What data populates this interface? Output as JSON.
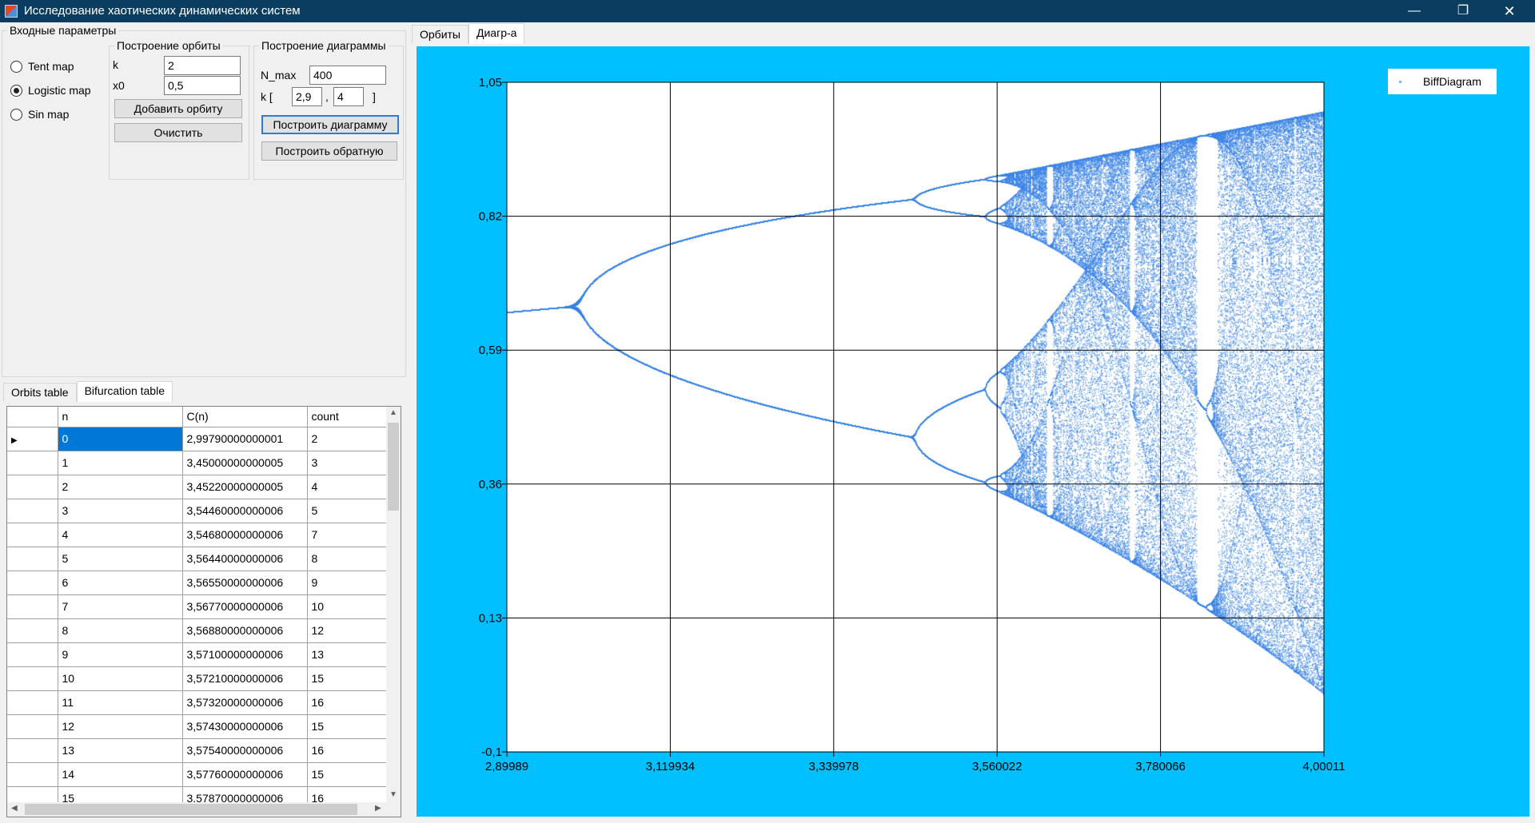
{
  "window": {
    "title": "Исследование хаотических динамических систем",
    "minimize": "—",
    "maximize": "❐",
    "close": "✕"
  },
  "params": {
    "group_label": "Входные параметры",
    "maps": [
      {
        "label": "Tent map",
        "checked": false
      },
      {
        "label": "Logistic map",
        "checked": true
      },
      {
        "label": "Sin map",
        "checked": false
      }
    ],
    "orbit": {
      "title": "Построение орбиты",
      "k_label": "k",
      "k_value": "2",
      "x0_label": "x0",
      "x0_value": "0,5",
      "add_button": "Добавить орбиту",
      "clear_button": "Очистить"
    },
    "diagram": {
      "title": "Построение диаграммы",
      "nmax_label": "N_max",
      "nmax_value": "400",
      "k_open": "k [",
      "k_from": "2,9",
      "k_sep": ",",
      "k_to": "4",
      "k_close": "]",
      "build_button": "Построить диаграмму",
      "build_reverse_button": "Построить обратную"
    }
  },
  "bottom_tabs": [
    "Orbits table",
    "Bifurcation table"
  ],
  "table": {
    "columns": [
      "n",
      "C(n)",
      "count"
    ],
    "rows": [
      [
        "0",
        "2,99790000000001",
        "2"
      ],
      [
        "1",
        "3,45000000000005",
        "3"
      ],
      [
        "2",
        "3,45220000000005",
        "4"
      ],
      [
        "3",
        "3,54460000000006",
        "5"
      ],
      [
        "4",
        "3,54680000000006",
        "7"
      ],
      [
        "5",
        "3,56440000000006",
        "8"
      ],
      [
        "6",
        "3,56550000000006",
        "9"
      ],
      [
        "7",
        "3,56770000000006",
        "10"
      ],
      [
        "8",
        "3,56880000000006",
        "12"
      ],
      [
        "9",
        "3,57100000000006",
        "13"
      ],
      [
        "10",
        "3,57210000000006",
        "15"
      ],
      [
        "11",
        "3,57320000000006",
        "16"
      ],
      [
        "12",
        "3,57430000000006",
        "15"
      ],
      [
        "13",
        "3,57540000000006",
        "16"
      ],
      [
        "14",
        "3,57760000000006",
        "15"
      ],
      [
        "15",
        "3,57870000000006",
        "16"
      ]
    ]
  },
  "right_tabs": [
    "Орбиты",
    "Диагр-а"
  ],
  "colors": {
    "chart_bg": "#00bfff",
    "series": "#3d85e6",
    "titlebar": "#0a3d5f",
    "selection": "#0078d7"
  },
  "chart_data": {
    "type": "scatter",
    "series": [
      {
        "name": "BiffDiagram",
        "model": "logistic map x(n+1) = k*x(n)*(1-x(n)), x0 = 0,5, N_max = 400"
      }
    ],
    "k_range": [
      2.9,
      4.0
    ],
    "xlim": [
      2.89989,
      4.00011
    ],
    "ylim": [
      -0.1,
      1.05
    ],
    "x_ticks": [
      "2,89989",
      "3,119934",
      "3,339978",
      "3,560022",
      "3,780066",
      "4,00011"
    ],
    "y_ticks": [
      "1,05",
      "0,82",
      "0,59",
      "0,36",
      "0,13",
      "-0,1"
    ],
    "grid": true,
    "legend_position": "top-right"
  }
}
